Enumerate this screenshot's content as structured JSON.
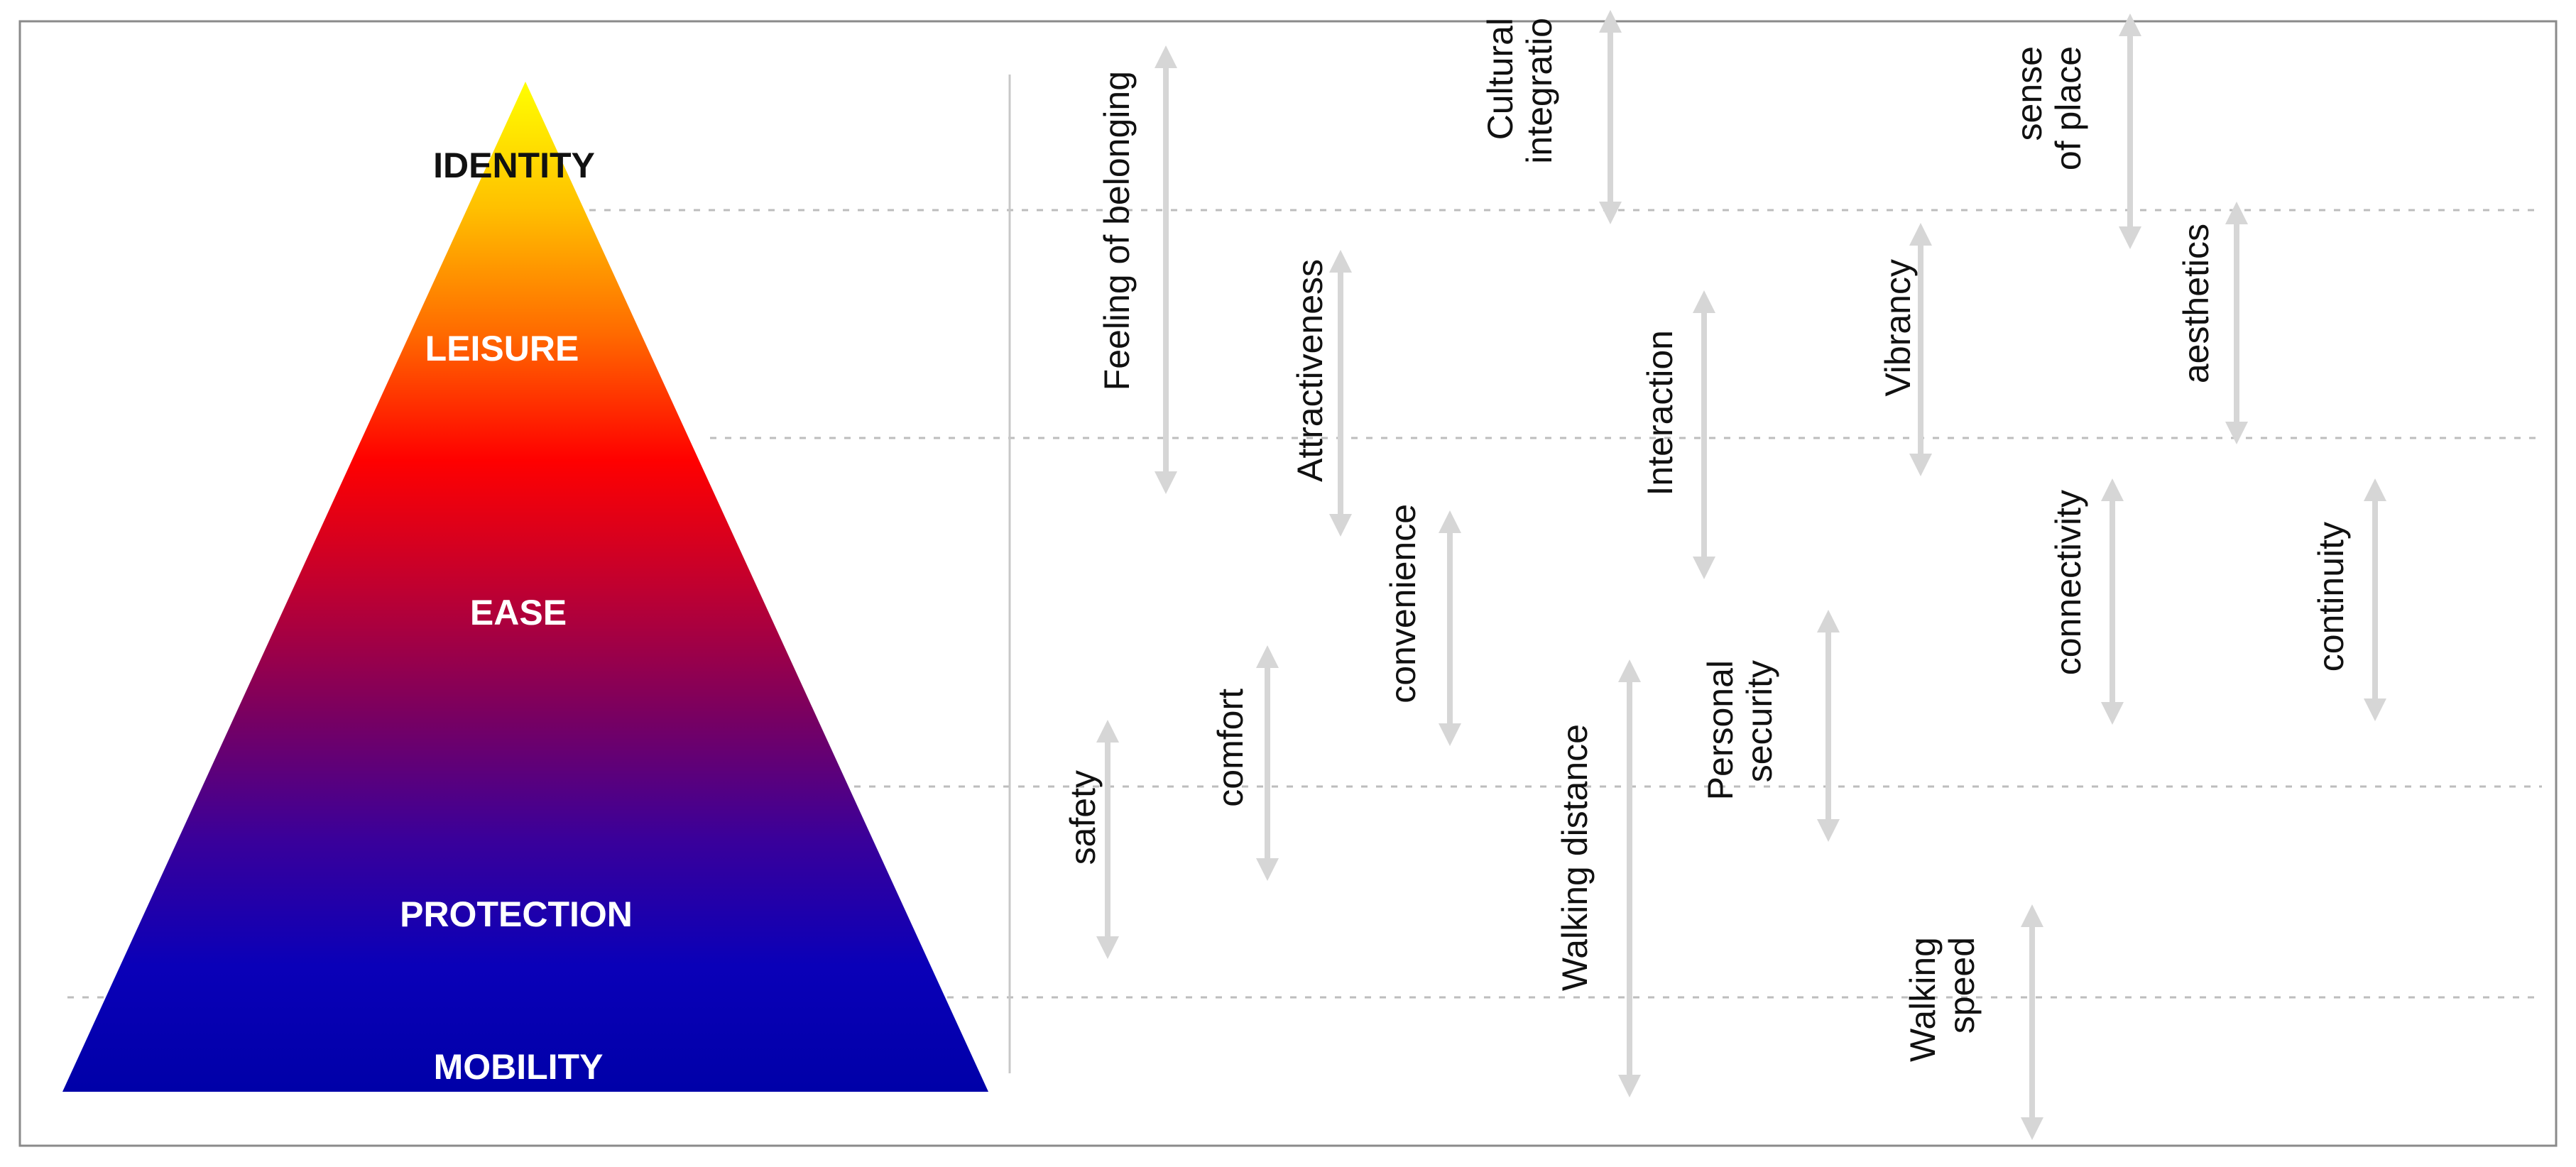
{
  "levels": [
    {
      "id": "identity",
      "label": "IDENTITY",
      "text_color": "#111111"
    },
    {
      "id": "leisure",
      "label": "LEISURE",
      "text_color": "#ffffff"
    },
    {
      "id": "ease",
      "label": "EASE",
      "text_color": "#ffffff"
    },
    {
      "id": "protection",
      "label": "PROTECTION",
      "text_color": "#ffffff"
    },
    {
      "id": "mobility",
      "label": "MOBILITY",
      "text_color": "#ffffff"
    }
  ],
  "pyramid_gradient": [
    "#ffff00",
    "#ffc000",
    "#ff6a00",
    "#ff0000",
    "#c00030",
    "#7a0060",
    "#3a009a",
    "#0a00b8",
    "#0000a8"
  ],
  "attributes": [
    {
      "id": "feeling-of-belonging",
      "lines": [
        "Feeling of belonging"
      ]
    },
    {
      "id": "cultural-integration",
      "lines": [
        "Cultural",
        "integratio"
      ]
    },
    {
      "id": "sense-of-place",
      "lines": [
        "sense",
        "of place"
      ]
    },
    {
      "id": "attractiveness",
      "lines": [
        "Attractiveness"
      ]
    },
    {
      "id": "interaction",
      "lines": [
        "Interaction"
      ]
    },
    {
      "id": "vibrancy",
      "lines": [
        "Vibrancy"
      ]
    },
    {
      "id": "aesthetics",
      "lines": [
        "aesthetics"
      ]
    },
    {
      "id": "convenience",
      "lines": [
        "convenience"
      ]
    },
    {
      "id": "connectivity",
      "lines": [
        "connectivity"
      ]
    },
    {
      "id": "continuity",
      "lines": [
        "continuity"
      ]
    },
    {
      "id": "comfort",
      "lines": [
        "comfort"
      ]
    },
    {
      "id": "safety",
      "lines": [
        "safety"
      ]
    },
    {
      "id": "walking-distance",
      "lines": [
        "Walking distance"
      ]
    },
    {
      "id": "personal-security",
      "lines": [
        "Personal",
        "security"
      ]
    },
    {
      "id": "walking-speed",
      "lines": [
        "Walking",
        "speed"
      ]
    }
  ],
  "colors": {
    "arrow": "#d6d6d6",
    "divider": "#c8c8c8",
    "frame": "#8a8a8a"
  }
}
